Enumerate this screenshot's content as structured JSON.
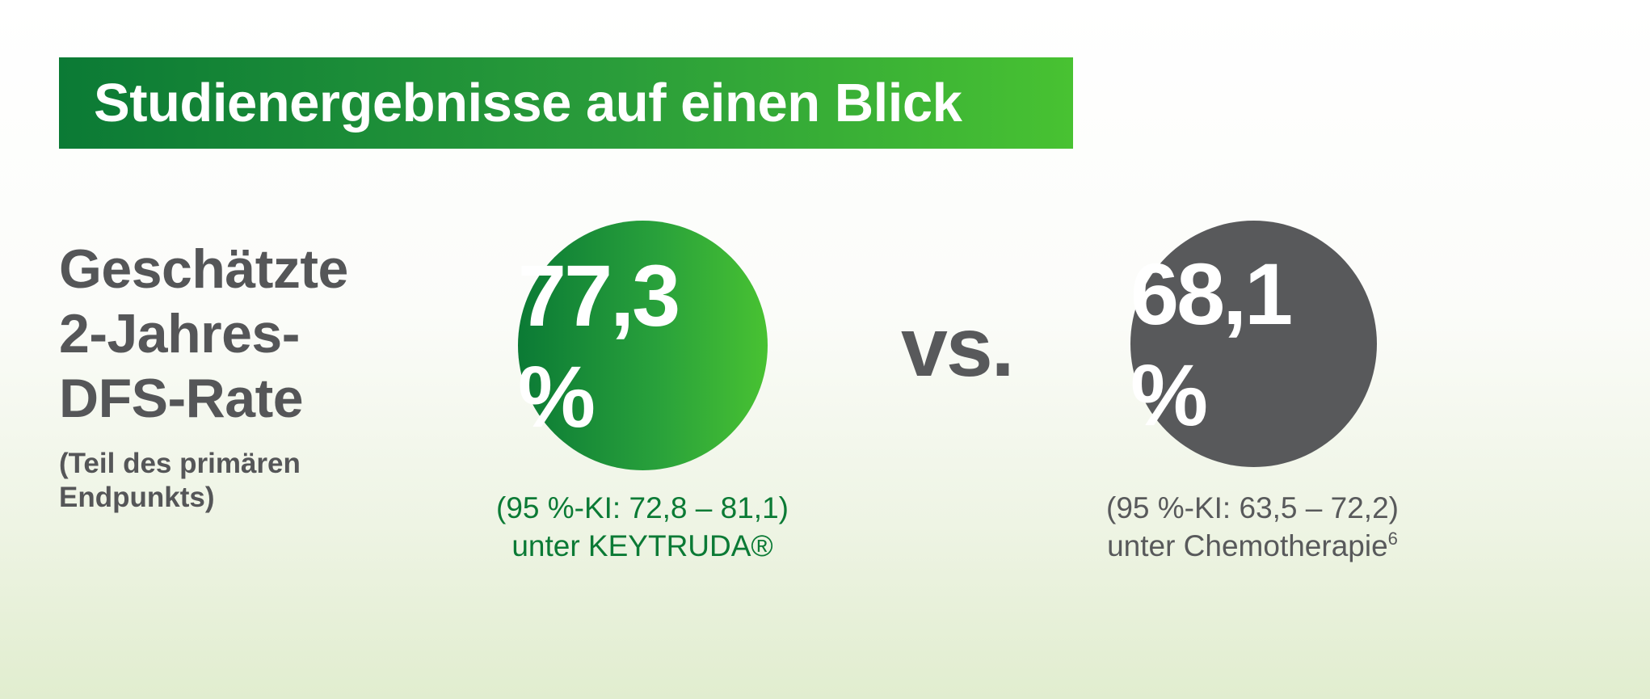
{
  "banner": {
    "title": "Studienergebnisse auf einen Blick"
  },
  "left": {
    "heading_lines": [
      "Geschätzte",
      "2-Jahres-",
      "DFS-Rate"
    ],
    "subheading_lines": [
      "(Teil des primären",
      "Endpunkts)"
    ]
  },
  "keytruda": {
    "value": "77,3 %",
    "ci": "(95 %-KI: 72,8 – 81,1)",
    "label": "unter KEYTRUDA®"
  },
  "vs": "vs.",
  "chemo": {
    "value": "68,1 %",
    "ci": "(95 %-KI: 63,5 – 72,2)",
    "label": "unter Chemotherapie",
    "footnote": "6"
  },
  "colors": {
    "brand_green_dark": "#0b7a35",
    "brand_green_light": "#48c232",
    "grey": "#58595b",
    "text_grey": "#555658"
  }
}
